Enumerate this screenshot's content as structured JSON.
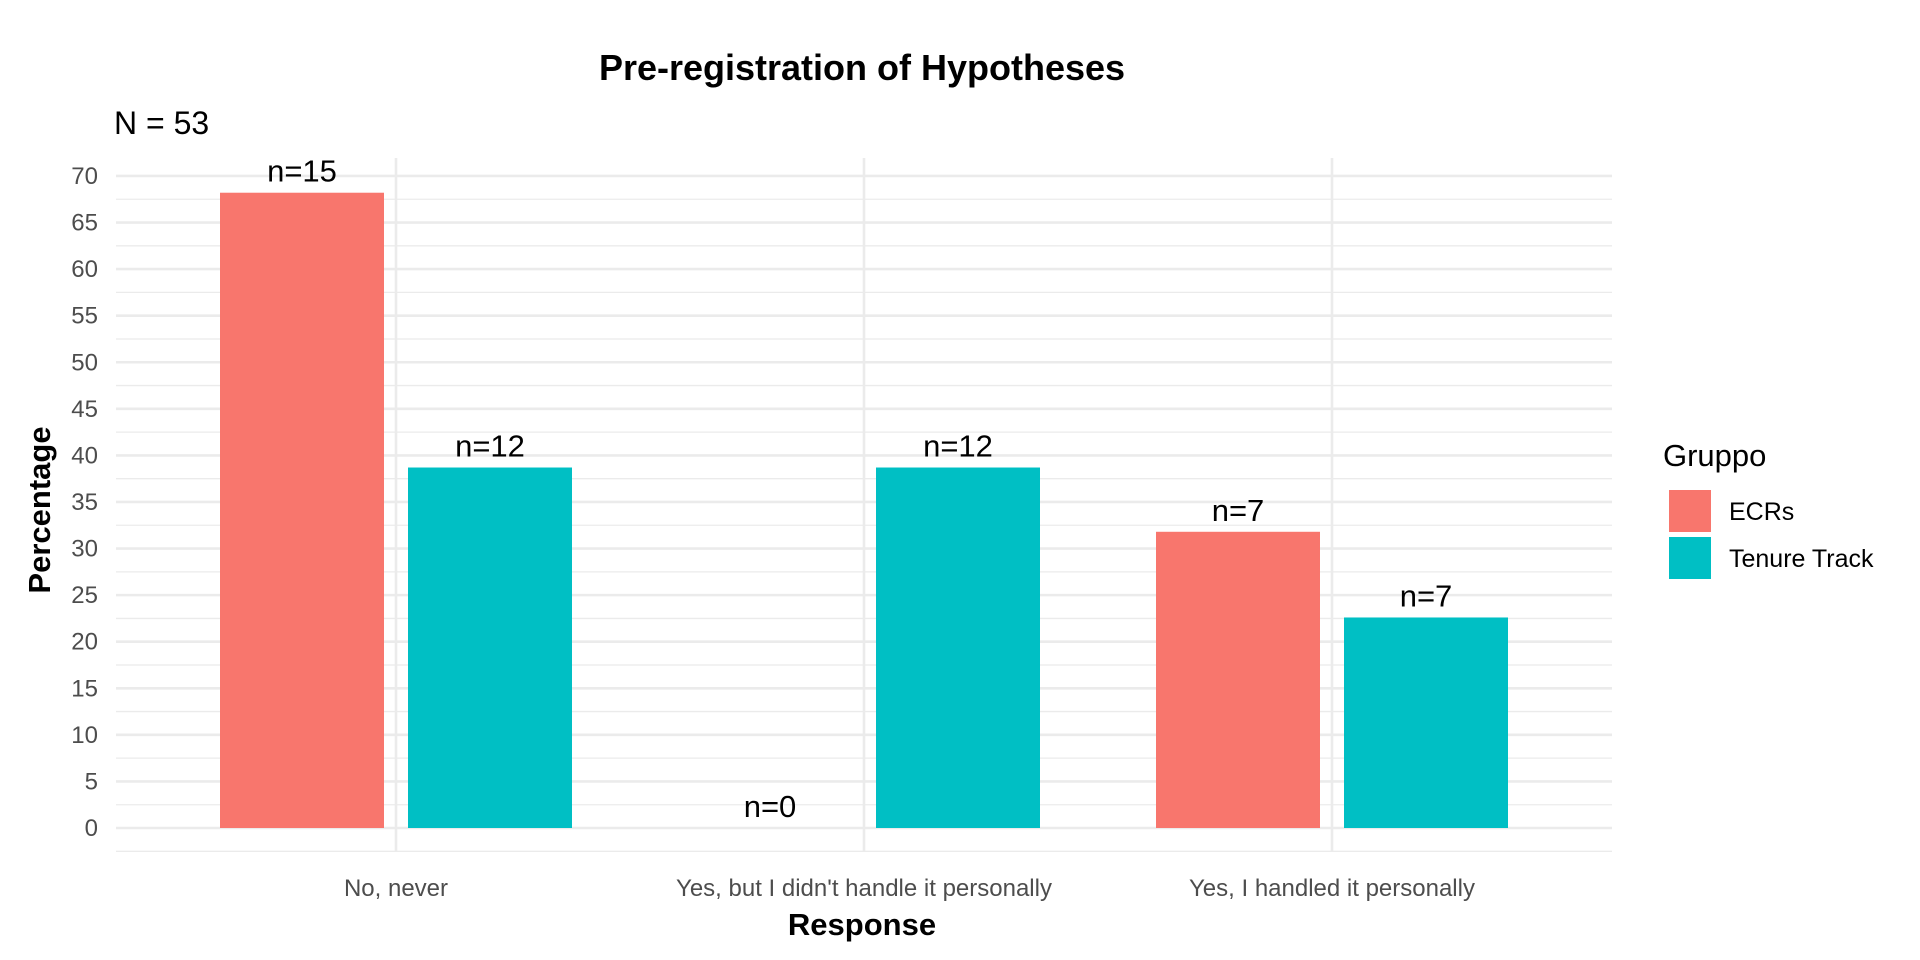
{
  "chart_data": {
    "type": "bar",
    "title": "Pre-registration of Hypotheses",
    "subtitle": "N = 53",
    "xlabel": "Response",
    "ylabel": "Percentage",
    "categories": [
      "No, never",
      "Yes, but I didn't handle it personally",
      "Yes, I handled it personally"
    ],
    "series": [
      {
        "name": "ECRs",
        "color": "#F8766D",
        "values": [
          68.2,
          0,
          31.8
        ],
        "labels": [
          "n=15",
          "n=0",
          "n=7"
        ]
      },
      {
        "name": "Tenure Track",
        "color": "#00BFC4",
        "values": [
          38.7,
          38.7,
          22.6
        ],
        "labels": [
          "n=12",
          "n=12",
          "n=7"
        ]
      }
    ],
    "ylim": [
      0,
      70
    ],
    "yticks": [
      0,
      5,
      10,
      15,
      20,
      25,
      30,
      35,
      40,
      45,
      50,
      55,
      60,
      65,
      70
    ],
    "grid": true,
    "legend": {
      "title": "Gruppo",
      "position": "right"
    }
  }
}
